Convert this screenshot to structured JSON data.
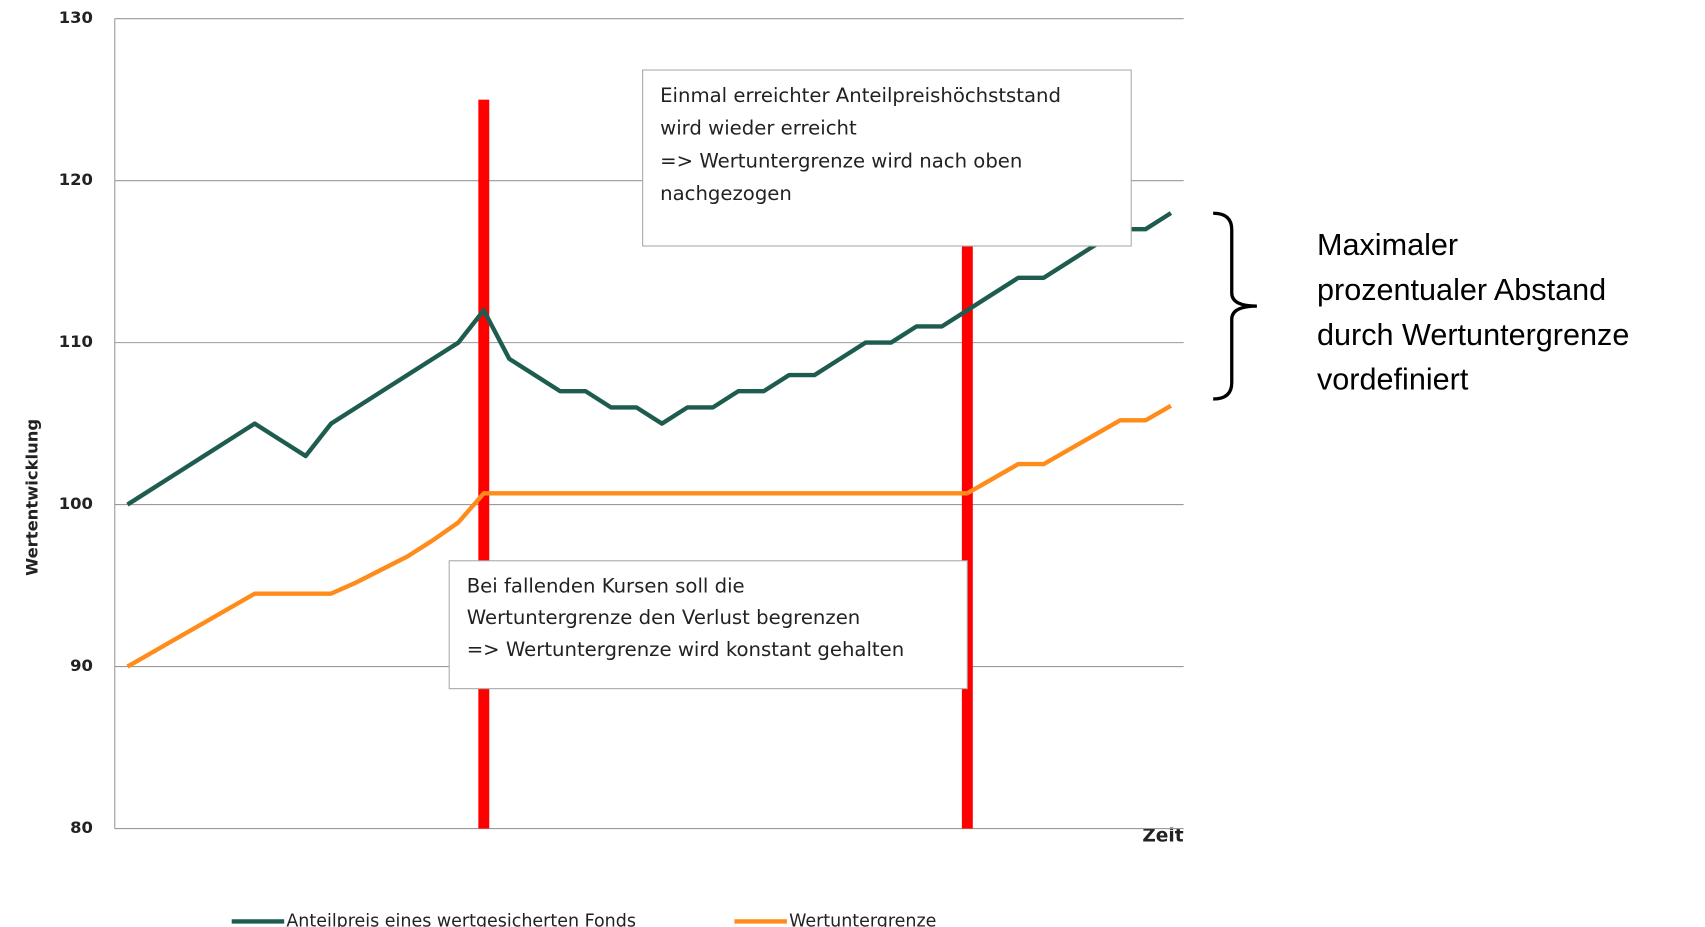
{
  "chart_data": {
    "type": "line",
    "ylabel": "Wertentwicklung",
    "xlabel": "Zeit",
    "categories": [
      null,
      null,
      null,
      null,
      null,
      null,
      null,
      null,
      null,
      null,
      null,
      null,
      null,
      null,
      null,
      null,
      null,
      null,
      null,
      null,
      null,
      null,
      null,
      null,
      null,
      null,
      null,
      null,
      null,
      null,
      null,
      null,
      null,
      null,
      null,
      null,
      null,
      null,
      null,
      null,
      null,
      null
    ],
    "series": [
      {
        "name": "Anteilpreis eines wertgesicherten Fonds",
        "color": "#1f5c50",
        "values": [
          100,
          101,
          102,
          103,
          104,
          105,
          104,
          103,
          105,
          106,
          107,
          108,
          109,
          110,
          112,
          109,
          108,
          107,
          107,
          106,
          106,
          105,
          106,
          106,
          107,
          107,
          108,
          108,
          109,
          110,
          110,
          111,
          111,
          112,
          113,
          114,
          114,
          115,
          116,
          117,
          117,
          118
        ]
      },
      {
        "name": "Wertuntergrenze",
        "color": "#ff8c1a",
        "values": [
          90,
          90.9,
          91.8,
          92.7,
          93.6,
          94.5,
          94.5,
          94.5,
          94.5,
          95.2,
          96,
          96.8,
          97.8,
          98.9,
          100.7,
          100.7,
          100.7,
          100.7,
          100.7,
          100.7,
          100.7,
          100.7,
          100.7,
          100.7,
          100.7,
          100.7,
          100.7,
          100.7,
          100.7,
          100.7,
          100.7,
          100.7,
          100.7,
          100.7,
          101.6,
          102.5,
          102.5,
          103.4,
          104.3,
          105.2,
          105.2,
          106.1
        ]
      }
    ],
    "red_bars": {
      "x": [
        14,
        33
      ],
      "values": [
        125,
        125
      ],
      "color": "#ff0000"
    },
    "ylim": [
      80,
      130
    ],
    "yticks": [
      80,
      90,
      100,
      110,
      120,
      130
    ],
    "grid": true,
    "legend": "bottom",
    "annotations": [
      [
        "Einmal erreichter Anteilpreishöchststand",
        "wird wieder erreicht",
        "=> Wertuntergrenze wird nach oben",
        "nachgezogen"
      ],
      [
        "Bei fallenden Kursen soll die",
        "Wertuntergrenze den Verlust begrenzen",
        "=> Wertuntergrenze wird konstant gehalten"
      ],
      [
        "Maximaler",
        "prozentualer Abstand",
        "durch Wertuntergrenze",
        "vordefiniert"
      ]
    ]
  }
}
